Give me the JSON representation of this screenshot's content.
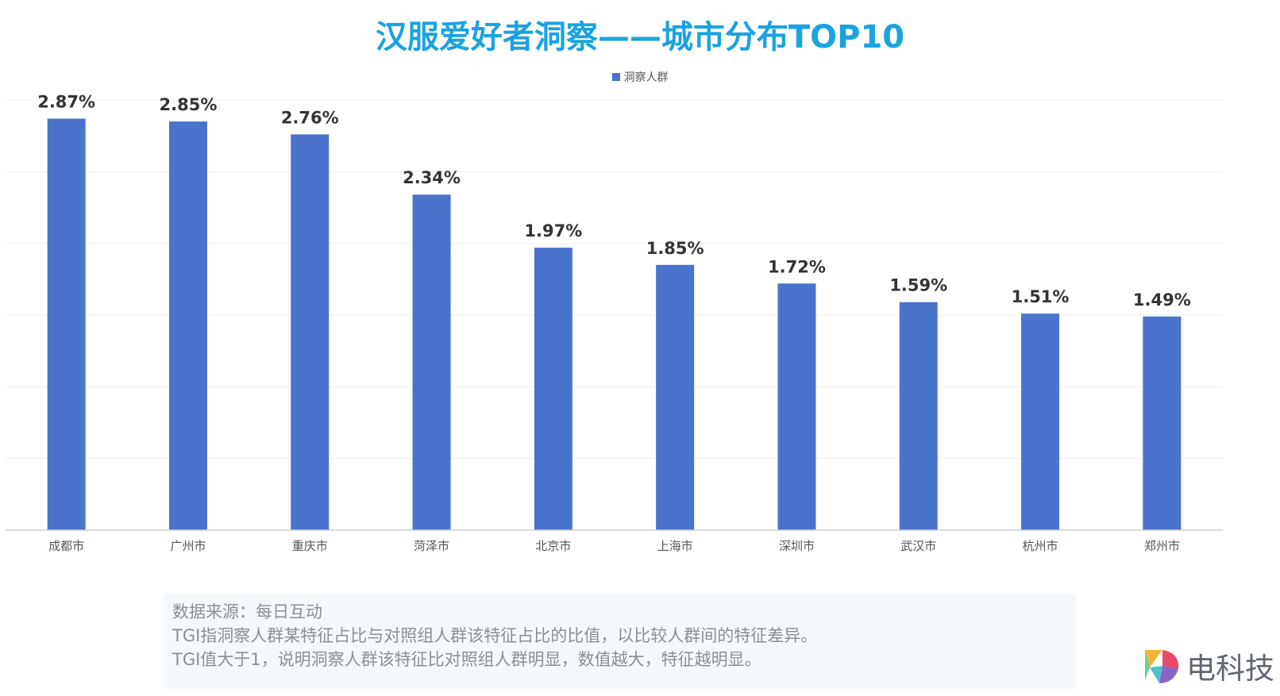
{
  "chart_data": {
    "type": "bar",
    "title": "汉服爱好者洞察——城市分布TOP10",
    "categories": [
      "成都市",
      "广州市",
      "重庆市",
      "菏泽市",
      "北京市",
      "上海市",
      "深圳市",
      "武汉市",
      "杭州市",
      "郑州市"
    ],
    "series": [
      {
        "name": "洞察人群",
        "values": [
          2.87,
          2.85,
          2.76,
          2.34,
          1.97,
          1.85,
          1.72,
          1.59,
          1.51,
          1.49
        ],
        "labels": [
          "2.87%",
          "2.85%",
          "2.76%",
          "2.34%",
          "1.97%",
          "1.85%",
          "1.72%",
          "1.59%",
          "1.51%",
          "1.49%"
        ]
      }
    ],
    "ylim": [
      0,
      3.0
    ],
    "grid": true,
    "legend": "top-center",
    "colors": {
      "bar": "#4a73cb",
      "title": "#1aa3e0",
      "grid": "#eeeeee"
    }
  },
  "footnote": {
    "line1": "数据来源：每日互动",
    "line2": "TGI指洞察人群某特征占比与对照组人群该特征占比的比值，以比较人群间的特征差异。",
    "line3": "TGI值大于1，说明洞察人群该特征比对照组人群明显，数值越大，特征越明显。"
  },
  "brand": {
    "text": "电科技",
    "icon": "brand-logo-icon"
  }
}
